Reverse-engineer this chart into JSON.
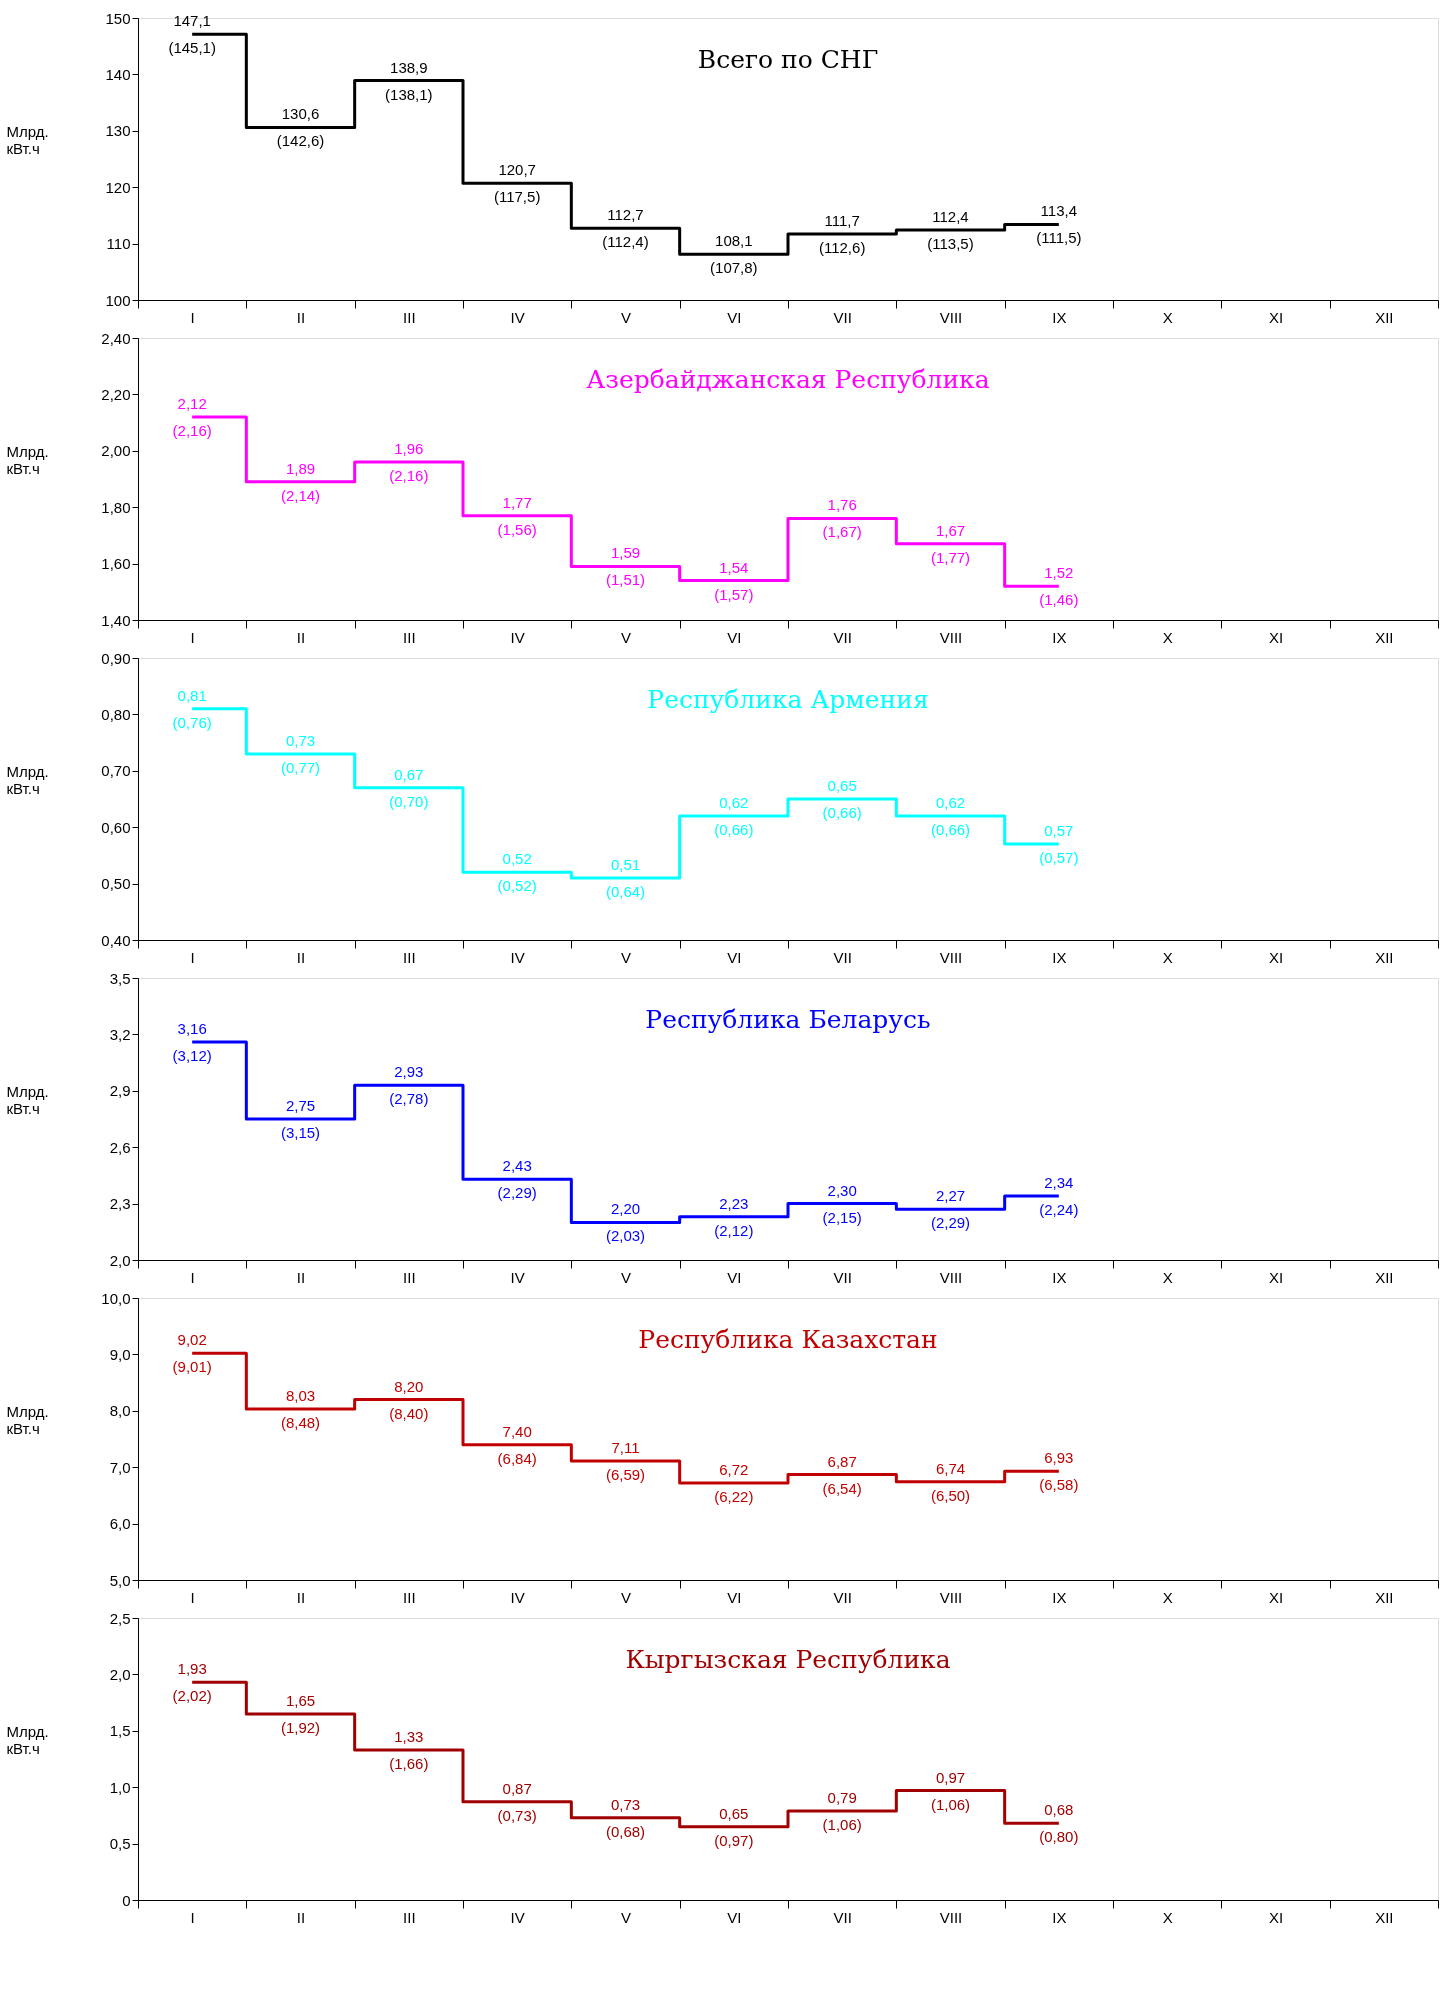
{
  "chart_data": [
    {
      "type": "step",
      "title": "Всего по СНГ",
      "ylabel": "Млрд. кВт.ч",
      "categories": [
        "I",
        "II",
        "III",
        "IV",
        "V",
        "VI",
        "VII",
        "VIII",
        "IX",
        "X",
        "XI",
        "XII"
      ],
      "ylim": [
        100,
        150
      ],
      "yticks": [
        100,
        110,
        120,
        130,
        140,
        150
      ],
      "series": [
        {
          "color": "#000000",
          "values": [
            147.1,
            130.6,
            138.9,
            120.7,
            112.7,
            108.1,
            111.7,
            112.4,
            113.4,
            null,
            null,
            null
          ],
          "value_labels": [
            "147,1",
            "130,6",
            "138,9",
            "120,7",
            "112,7",
            "108,1",
            "111,7",
            "112,4",
            "113,4",
            null,
            null,
            null
          ]
        }
      ],
      "annotations": [
        {
          "text": "(145,1)",
          "x": "I",
          "y": 147.1
        },
        {
          "text": "(142,6)",
          "x": "II",
          "y": 130.6
        },
        {
          "text": "(138,1)",
          "x": "III",
          "y": 138.9
        },
        {
          "text": "(117,5)",
          "x": "IV",
          "y": 120.7
        },
        {
          "text": "(112,4)",
          "x": "V",
          "y": 112.7
        },
        {
          "text": "(107,8)",
          "x": "VI",
          "y": 108.1
        },
        {
          "text": "(112,6)",
          "x": "VII",
          "y": 111.7
        },
        {
          "text": "(113,5)",
          "x": "VIII",
          "y": 112.4
        },
        {
          "text": "(111,5)",
          "x": "IX",
          "y": 113.4
        }
      ]
    },
    {
      "type": "step",
      "title": "Азербайджанская Республика",
      "ylabel": "Млрд. кВт.ч",
      "categories": [
        "I",
        "II",
        "III",
        "IV",
        "V",
        "VI",
        "VII",
        "VIII",
        "IX",
        "X",
        "XI",
        "XII"
      ],
      "ylim": [
        1.4,
        2.4
      ],
      "yticks": [
        {
          "value": 1.4,
          "label": "1,40"
        },
        {
          "value": 1.6,
          "label": "1,60"
        },
        {
          "value": 1.8,
          "label": "1,80"
        },
        {
          "value": 2.0,
          "label": "2,00"
        },
        {
          "value": 2.2,
          "label": "2,20"
        },
        {
          "value": 2.4,
          "label": "2,40"
        }
      ],
      "series": [
        {
          "color": "#ff00ff",
          "values": [
            2.12,
            1.89,
            1.96,
            1.77,
            1.59,
            1.54,
            1.76,
            1.67,
            1.52,
            null,
            null,
            null
          ],
          "value_labels": [
            "2,12",
            "1,89",
            "1,96",
            "1,77",
            "1,59",
            "1,54",
            "1,76",
            "1,67",
            "1,52",
            null,
            null,
            null
          ]
        }
      ],
      "annotations": [
        {
          "text": "(2,16)",
          "x": "I",
          "y": 2.12
        },
        {
          "text": "(2,14)",
          "x": "II",
          "y": 1.89
        },
        {
          "text": "(2,16)",
          "x": "III",
          "y": 1.96
        },
        {
          "text": "(1,56)",
          "x": "IV",
          "y": 1.77
        },
        {
          "text": "(1,51)",
          "x": "V",
          "y": 1.59
        },
        {
          "text": "(1,57)",
          "x": "VI",
          "y": 1.54
        },
        {
          "text": "(1,67)",
          "x": "VII",
          "y": 1.76
        },
        {
          "text": "(1,77)",
          "x": "VIII",
          "y": 1.67
        },
        {
          "text": "(1,46)",
          "x": "IX",
          "y": 1.52
        }
      ]
    },
    {
      "type": "step",
      "title": "Республика Армения",
      "ylabel": "Млрд. кВт.ч",
      "categories": [
        "I",
        "II",
        "III",
        "IV",
        "V",
        "VI",
        "VII",
        "VIII",
        "IX",
        "X",
        "XI",
        "XII"
      ],
      "ylim": [
        0.4,
        0.9
      ],
      "yticks": [
        {
          "value": 0.4,
          "label": "0,40"
        },
        {
          "value": 0.5,
          "label": "0,50"
        },
        {
          "value": 0.6,
          "label": "0,60"
        },
        {
          "value": 0.7,
          "label": "0,70"
        },
        {
          "value": 0.8,
          "label": "0,80"
        },
        {
          "value": 0.9,
          "label": "0,90"
        }
      ],
      "series": [
        {
          "color": "#00ffff",
          "values": [
            0.81,
            0.73,
            0.67,
            0.52,
            0.51,
            0.62,
            0.65,
            0.62,
            0.57,
            null,
            null,
            null
          ],
          "value_labels": [
            "0,81",
            "0,73",
            "0,67",
            "0,52",
            "0,51",
            "0,62",
            "0,65",
            "0,62",
            "0,57",
            null,
            null,
            null
          ]
        }
      ],
      "annotations": [
        {
          "text": "(0,76)",
          "x": "I",
          "y": 0.81
        },
        {
          "text": "(0,77)",
          "x": "II",
          "y": 0.73
        },
        {
          "text": "(0,70)",
          "x": "III",
          "y": 0.67
        },
        {
          "text": "(0,52)",
          "x": "IV",
          "y": 0.52
        },
        {
          "text": "(0,64)",
          "x": "V",
          "y": 0.51
        },
        {
          "text": "(0,66)",
          "x": "VI",
          "y": 0.62
        },
        {
          "text": "(0,66)",
          "x": "VII",
          "y": 0.65
        },
        {
          "text": "(0,66)",
          "x": "VIII",
          "y": 0.62
        },
        {
          "text": "(0,57)",
          "x": "IX",
          "y": 0.57
        }
      ]
    },
    {
      "type": "step",
      "title": "Республика Беларусь",
      "ylabel": "Млрд. кВт.ч",
      "categories": [
        "I",
        "II",
        "III",
        "IV",
        "V",
        "VI",
        "VII",
        "VIII",
        "IX",
        "X",
        "XI",
        "XII"
      ],
      "ylim": [
        2.0,
        3.5
      ],
      "yticks": [
        {
          "value": 2.0,
          "label": "2,0"
        },
        {
          "value": 2.3,
          "label": "2,3"
        },
        {
          "value": 2.6,
          "label": "2,6"
        },
        {
          "value": 2.9,
          "label": "2,9"
        },
        {
          "value": 3.2,
          "label": "3,2"
        },
        {
          "value": 3.5,
          "label": "3,5"
        }
      ],
      "series": [
        {
          "color": "#0000ff",
          "values": [
            3.16,
            2.75,
            2.93,
            2.43,
            2.2,
            2.23,
            2.3,
            2.27,
            2.34,
            null,
            null,
            null
          ],
          "value_labels": [
            "3,16",
            "2,75",
            "2,93",
            "2,43",
            "2,20",
            "2,23",
            "2,30",
            "2,27",
            "2,34",
            null,
            null,
            null
          ]
        }
      ],
      "annotations": [
        {
          "text": "(3,12)",
          "x": "I",
          "y": 3.16
        },
        {
          "text": "(3,15)",
          "x": "II",
          "y": 2.75
        },
        {
          "text": "(2,78)",
          "x": "III",
          "y": 2.93
        },
        {
          "text": "(2,29)",
          "x": "IV",
          "y": 2.43
        },
        {
          "text": "(2,03)",
          "x": "V",
          "y": 2.2
        },
        {
          "text": "(2,12)",
          "x": "VI",
          "y": 2.23
        },
        {
          "text": "(2,15)",
          "x": "VII",
          "y": 2.3
        },
        {
          "text": "(2,29)",
          "x": "VIII",
          "y": 2.27
        },
        {
          "text": "(2,24)",
          "x": "IX",
          "y": 2.34
        }
      ]
    },
    {
      "type": "step",
      "title": "Республика Казахстан",
      "ylabel": "Млрд. кВт.ч",
      "categories": [
        "I",
        "II",
        "III",
        "IV",
        "V",
        "VI",
        "VII",
        "VIII",
        "IX",
        "X",
        "XI",
        "XII"
      ],
      "ylim": [
        5.0,
        10.0
      ],
      "yticks": [
        {
          "value": 5.0,
          "label": "5,0"
        },
        {
          "value": 6.0,
          "label": "6,0"
        },
        {
          "value": 7.0,
          "label": "7,0"
        },
        {
          "value": 8.0,
          "label": "8,0"
        },
        {
          "value": 9.0,
          "label": "9,0"
        },
        {
          "value": 10.0,
          "label": "10,0"
        }
      ],
      "series": [
        {
          "color": "#c00000",
          "values": [
            9.02,
            8.03,
            8.2,
            7.4,
            7.11,
            6.72,
            6.87,
            6.74,
            6.93,
            null,
            null,
            null
          ],
          "value_labels": [
            "9,02",
            "8,03",
            "8,20",
            "7,40",
            "7,11",
            "6,72",
            "6,87",
            "6,74",
            "6,93",
            null,
            null,
            null
          ]
        }
      ],
      "annotations": [
        {
          "text": "(9,01)",
          "x": "I",
          "y": 9.02
        },
        {
          "text": "(8,48)",
          "x": "II",
          "y": 8.03
        },
        {
          "text": "(8,40)",
          "x": "III",
          "y": 8.2
        },
        {
          "text": "(6,84)",
          "x": "IV",
          "y": 7.4
        },
        {
          "text": "(6,59)",
          "x": "V",
          "y": 7.11
        },
        {
          "text": "(6,22)",
          "x": "VI",
          "y": 6.72
        },
        {
          "text": "(6,54)",
          "x": "VII",
          "y": 6.87
        },
        {
          "text": "(6,50)",
          "x": "VIII",
          "y": 6.74
        },
        {
          "text": "(6,58)",
          "x": "IX",
          "y": 6.93
        }
      ]
    },
    {
      "type": "step",
      "title": "Кыргызская Республика",
      "ylabel": "Млрд. кВт.ч",
      "categories": [
        "I",
        "II",
        "III",
        "IV",
        "V",
        "VI",
        "VII",
        "VIII",
        "IX",
        "X",
        "XI",
        "XII"
      ],
      "ylim": [
        0,
        2.5
      ],
      "yticks": [
        0,
        {
          "value": 0.5,
          "label": "0,5"
        },
        {
          "value": 1.0,
          "label": "1,0"
        },
        {
          "value": 1.5,
          "label": "1,5"
        },
        {
          "value": 2.0,
          "label": "2,0"
        },
        {
          "value": 2.5,
          "label": "2,5"
        }
      ],
      "series": [
        {
          "color": "#a00000",
          "values": [
            1.93,
            1.65,
            1.33,
            0.87,
            0.73,
            0.65,
            0.79,
            0.97,
            0.68,
            null,
            null,
            null
          ],
          "value_labels": [
            "1,93",
            "1,65",
            "1,33",
            "0,87",
            "0,73",
            "0,65",
            "0,79",
            "0,97",
            "0,68",
            null,
            null,
            null
          ]
        }
      ],
      "annotations": [
        {
          "text": "(2,02)",
          "x": "I",
          "y": 1.93
        },
        {
          "text": "(1,92)",
          "x": "II",
          "y": 1.65
        },
        {
          "text": "(1,66)",
          "x": "III",
          "y": 1.33
        },
        {
          "text": "(0,73)",
          "x": "IV",
          "y": 0.87
        },
        {
          "text": "(0,68)",
          "x": "V",
          "y": 0.73
        },
        {
          "text": "(0,97)",
          "x": "VI",
          "y": 0.65
        },
        {
          "text": "(1,06)",
          "x": "VII",
          "y": 0.79
        },
        {
          "text": "(1,06)",
          "x": "VIII",
          "y": 0.97
        },
        {
          "text": "(0,80)",
          "x": "IX",
          "y": 0.68
        }
      ]
    }
  ]
}
